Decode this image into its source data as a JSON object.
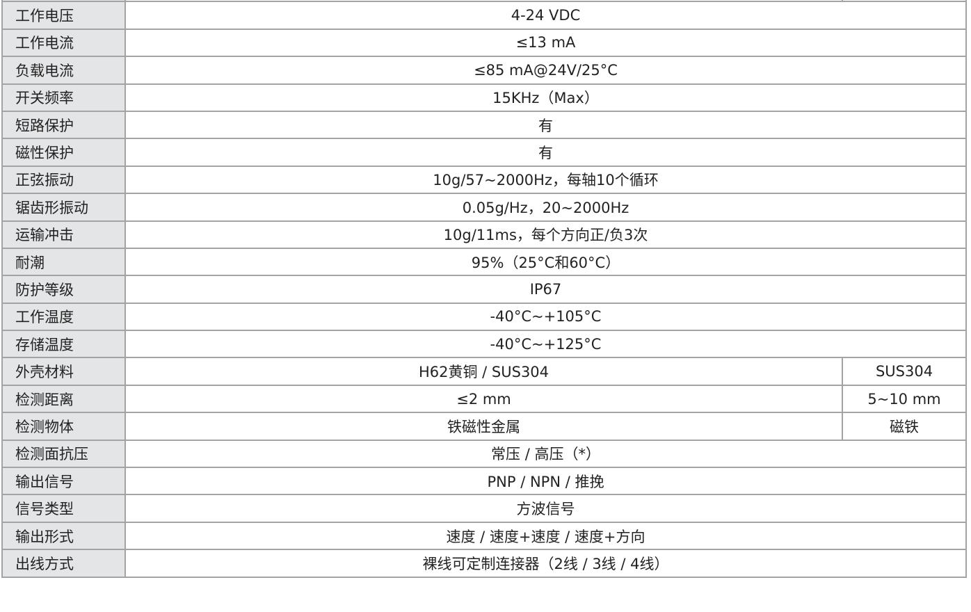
{
  "rows": [
    {
      "label": "工作电压",
      "value": "4-24 VDC"
    },
    {
      "label": "工作电流",
      "value": "≤13 mA"
    },
    {
      "label": "负载电流",
      "value": "≤85 mA@24V/25°C"
    },
    {
      "label": "开关频率",
      "value": "15KHz（Max）"
    },
    {
      "label": "短路保护",
      "value": "有"
    },
    {
      "label": "磁性保护",
      "value": "有"
    },
    {
      "label": "正弦振动",
      "value": "10g/57~2000Hz，每轴10个循环"
    },
    {
      "label": "锯齿形振动",
      "value": "0.05g/Hz，20~2000Hz"
    },
    {
      "label": "运输冲击",
      "value": "10g/11ms，每个方向正/负3次"
    },
    {
      "label": "耐潮",
      "value": "95%（25°C和60°C）"
    },
    {
      "label": "防护等级",
      "value": "IP67"
    },
    {
      "label": "工作温度",
      "value": "-40°C~+105°C"
    },
    {
      "label": "存储温度",
      "value": "-40°C~+125°C"
    },
    {
      "label": "外壳材料",
      "value": "H62黄铜 / SUS304",
      "value2": "SUS304"
    },
    {
      "label": "检测距离",
      "value": "≤2 mm",
      "value2": "5~10 mm"
    },
    {
      "label": "检测物体",
      "value": "铁磁性金属",
      "value2": "磁铁"
    },
    {
      "label": "检测面抗压",
      "value": "常压 / 高压（*）"
    },
    {
      "label": "输出信号",
      "value": "PNP / NPN / 推挽"
    },
    {
      "label": "信号类型",
      "value": "方波信号"
    },
    {
      "label": "输出形式",
      "value": "速度 / 速度+速度 / 速度+方向"
    },
    {
      "label": "出线方式",
      "value": "裸线可定制连接器（2线 / 3线 / 4线）"
    }
  ]
}
